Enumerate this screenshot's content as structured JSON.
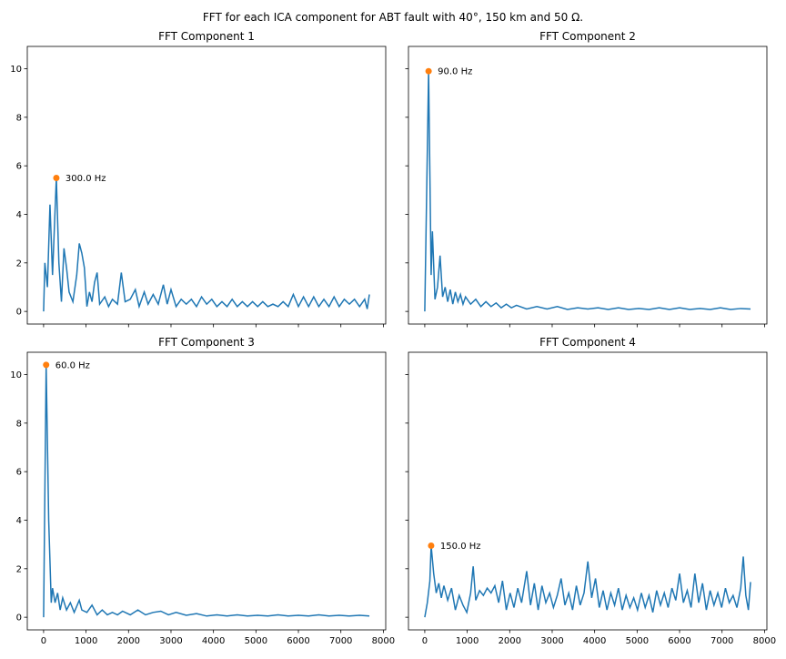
{
  "chart_data": {
    "type": "line",
    "title": "FFT for each ICA component for ABT fault with 40°, 150 km and 50 Ω.",
    "xlim": [
      -384,
      8056
    ],
    "ylim": [
      -0.52,
      10.92
    ],
    "xticks": [
      0,
      1000,
      2000,
      3000,
      4000,
      5000,
      6000,
      7000,
      8000
    ],
    "yticks": [
      0,
      2,
      4,
      6,
      8,
      10
    ],
    "line_color": "#1f77b4",
    "peak_color": "#ff7f0e",
    "subplots": [
      {
        "title": "FFT Component 1",
        "x": [
          0,
          30,
          90,
          150,
          210,
          300,
          360,
          420,
          480,
          540,
          600,
          690,
          780,
          840,
          900,
          960,
          1020,
          1080,
          1140,
          1200,
          1260,
          1320,
          1440,
          1530,
          1620,
          1740,
          1830,
          1920,
          2040,
          2160,
          2250,
          2370,
          2460,
          2580,
          2700,
          2820,
          2910,
          3000,
          3120,
          3240,
          3360,
          3480,
          3600,
          3720,
          3840,
          3960,
          4080,
          4200,
          4320,
          4440,
          4560,
          4680,
          4800,
          4920,
          5040,
          5160,
          5280,
          5400,
          5520,
          5640,
          5760,
          5880,
          6000,
          6120,
          6240,
          6360,
          6480,
          6600,
          6720,
          6840,
          6960,
          7080,
          7200,
          7320,
          7440,
          7560,
          7620,
          7671
        ],
        "values": [
          0,
          2.0,
          1.0,
          4.4,
          1.5,
          5.5,
          2.0,
          0.4,
          2.6,
          1.8,
          0.8,
          0.4,
          1.5,
          2.8,
          2.4,
          1.8,
          0.2,
          0.8,
          0.4,
          1.2,
          1.6,
          0.3,
          0.6,
          0.2,
          0.5,
          0.3,
          1.6,
          0.4,
          0.5,
          0.9,
          0.2,
          0.8,
          0.3,
          0.7,
          0.3,
          1.1,
          0.3,
          0.9,
          0.2,
          0.5,
          0.3,
          0.5,
          0.2,
          0.6,
          0.3,
          0.5,
          0.2,
          0.4,
          0.2,
          0.5,
          0.2,
          0.4,
          0.2,
          0.4,
          0.2,
          0.4,
          0.2,
          0.3,
          0.2,
          0.4,
          0.2,
          0.7,
          0.2,
          0.6,
          0.2,
          0.6,
          0.2,
          0.5,
          0.2,
          0.6,
          0.2,
          0.5,
          0.3,
          0.5,
          0.2,
          0.5,
          0.1,
          0.7
        ],
        "peak": {
          "x": 300,
          "y": 5.5,
          "label": "300.0 Hz"
        }
      },
      {
        "title": "FFT Component 2",
        "x": [
          0,
          90,
          150,
          180,
          240,
          300,
          360,
          420,
          480,
          540,
          600,
          660,
          720,
          780,
          840,
          900,
          960,
          1080,
          1200,
          1320,
          1440,
          1560,
          1680,
          1800,
          1920,
          2040,
          2160,
          2400,
          2640,
          2880,
          3120,
          3360,
          3600,
          3840,
          4080,
          4320,
          4560,
          4800,
          5040,
          5280,
          5520,
          5760,
          6000,
          6240,
          6480,
          6720,
          6960,
          7200,
          7440,
          7671
        ],
        "values": [
          0,
          9.9,
          1.5,
          3.3,
          0.5,
          1.0,
          2.3,
          0.6,
          1.0,
          0.4,
          0.9,
          0.3,
          0.8,
          0.4,
          0.7,
          0.3,
          0.6,
          0.3,
          0.5,
          0.2,
          0.4,
          0.2,
          0.35,
          0.15,
          0.3,
          0.15,
          0.25,
          0.1,
          0.2,
          0.1,
          0.2,
          0.08,
          0.15,
          0.1,
          0.15,
          0.08,
          0.15,
          0.08,
          0.12,
          0.08,
          0.15,
          0.08,
          0.15,
          0.08,
          0.12,
          0.08,
          0.15,
          0.08,
          0.12,
          0.1
        ],
        "peak": {
          "x": 90,
          "y": 9.9,
          "label": "90.0 Hz"
        }
      },
      {
        "title": "FFT Component 3",
        "x": [
          0,
          60,
          120,
          180,
          210,
          270,
          330,
          390,
          450,
          540,
          630,
          720,
          840,
          900,
          1020,
          1140,
          1260,
          1380,
          1500,
          1620,
          1740,
          1860,
          2040,
          2220,
          2400,
          2580,
          2760,
          2940,
          3120,
          3360,
          3600,
          3840,
          4080,
          4320,
          4560,
          4800,
          5040,
          5280,
          5520,
          5760,
          6000,
          6240,
          6480,
          6720,
          6960,
          7200,
          7440,
          7671
        ],
        "values": [
          0,
          10.4,
          4.0,
          0.6,
          1.2,
          0.6,
          1.0,
          0.3,
          0.8,
          0.3,
          0.6,
          0.2,
          0.7,
          0.3,
          0.2,
          0.5,
          0.1,
          0.3,
          0.1,
          0.2,
          0.1,
          0.25,
          0.1,
          0.3,
          0.1,
          0.2,
          0.25,
          0.1,
          0.2,
          0.08,
          0.15,
          0.05,
          0.1,
          0.05,
          0.1,
          0.05,
          0.08,
          0.05,
          0.1,
          0.05,
          0.08,
          0.05,
          0.1,
          0.05,
          0.08,
          0.05,
          0.08,
          0.05
        ],
        "peak": {
          "x": 60,
          "y": 10.4,
          "label": "60.0 Hz"
        }
      },
      {
        "title": "FFT Component 4",
        "x": [
          0,
          60,
          120,
          150,
          210,
          270,
          330,
          390,
          450,
          540,
          630,
          720,
          810,
          900,
          990,
          1080,
          1140,
          1200,
          1290,
          1380,
          1470,
          1560,
          1650,
          1740,
          1830,
          1920,
          2010,
          2100,
          2190,
          2280,
          2400,
          2490,
          2580,
          2670,
          2760,
          2850,
          2940,
          3030,
          3120,
          3210,
          3300,
          3390,
          3480,
          3570,
          3660,
          3750,
          3840,
          3930,
          4020,
          4110,
          4200,
          4290,
          4380,
          4470,
          4560,
          4650,
          4740,
          4830,
          4920,
          5010,
          5100,
          5190,
          5280,
          5370,
          5460,
          5550,
          5640,
          5730,
          5820,
          5910,
          6000,
          6090,
          6180,
          6270,
          6360,
          6450,
          6540,
          6630,
          6720,
          6810,
          6900,
          6990,
          7080,
          7170,
          7260,
          7350,
          7440,
          7500,
          7560,
          7620,
          7671
        ],
        "values": [
          0,
          0.6,
          1.5,
          2.95,
          1.8,
          1.0,
          1.4,
          0.8,
          1.3,
          0.7,
          1.2,
          0.3,
          0.9,
          0.5,
          0.2,
          1.0,
          2.1,
          0.7,
          1.1,
          0.9,
          1.2,
          1.0,
          1.3,
          0.6,
          1.5,
          0.3,
          1.0,
          0.4,
          1.2,
          0.6,
          1.9,
          0.5,
          1.4,
          0.3,
          1.3,
          0.6,
          1.0,
          0.4,
          0.9,
          1.6,
          0.5,
          1.0,
          0.3,
          1.3,
          0.5,
          1.0,
          2.3,
          0.8,
          1.6,
          0.4,
          1.1,
          0.3,
          1.0,
          0.5,
          1.2,
          0.3,
          0.9,
          0.4,
          0.8,
          0.3,
          1.0,
          0.4,
          0.9,
          0.2,
          1.1,
          0.5,
          1.0,
          0.4,
          1.2,
          0.7,
          1.8,
          0.6,
          1.1,
          0.4,
          1.8,
          0.6,
          1.4,
          0.3,
          1.1,
          0.5,
          1.0,
          0.4,
          1.2,
          0.6,
          0.9,
          0.4,
          1.2,
          2.5,
          0.9,
          0.3,
          1.45
        ],
        "peak": {
          "x": 150,
          "y": 2.95,
          "label": "150.0 Hz"
        }
      }
    ]
  }
}
